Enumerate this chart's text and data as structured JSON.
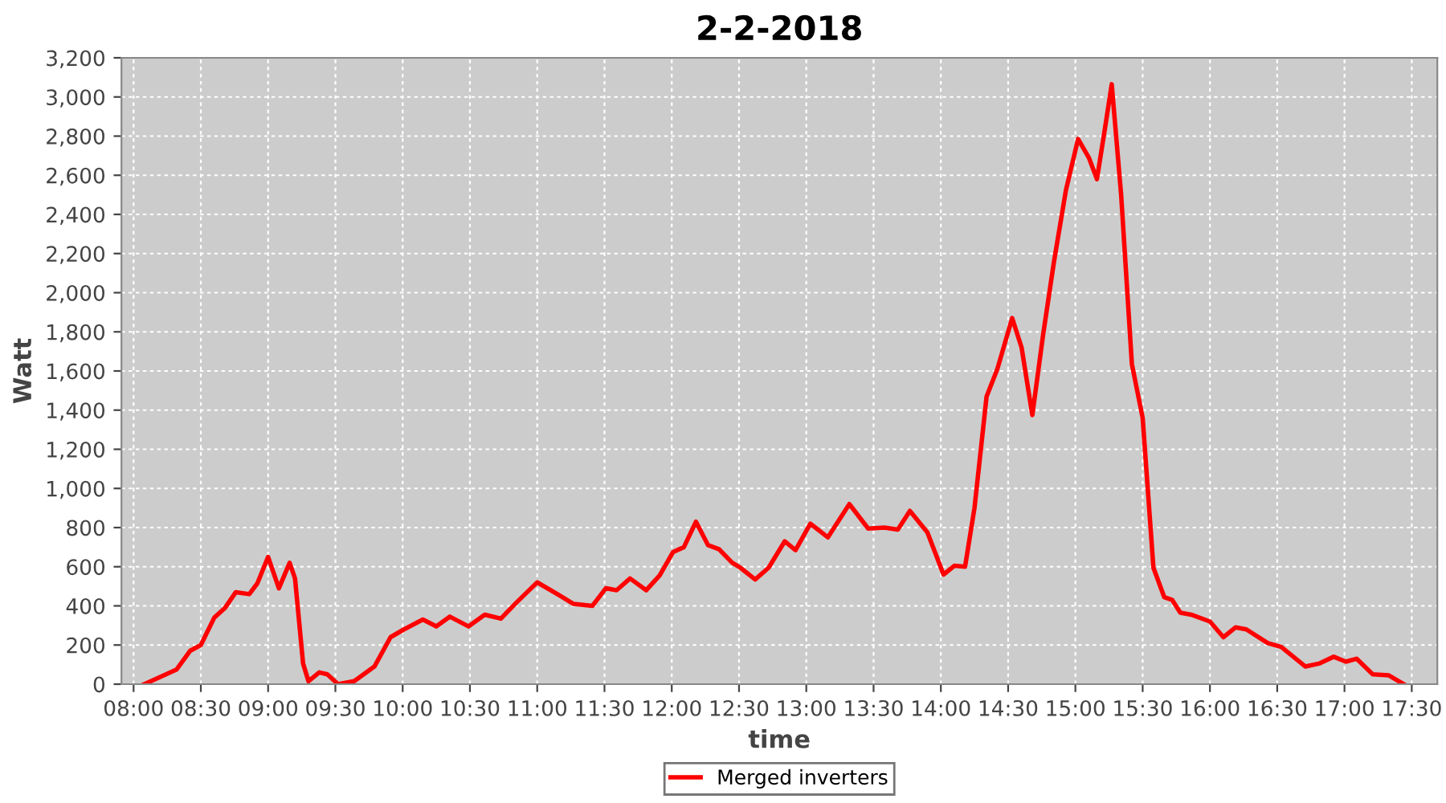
{
  "chart_data": {
    "type": "line",
    "title": "2-2-2018",
    "xlabel": "time",
    "ylabel": "Watt",
    "legend": "bottom",
    "grid": true,
    "line_style": "solid",
    "marker": "none",
    "xlim": [
      7.91,
      17.69
    ],
    "xticks": [
      {
        "value": 8,
        "label": "08:00"
      },
      {
        "value": 8.5,
        "label": "08:30"
      },
      {
        "value": 9,
        "label": "09:00"
      },
      {
        "value": 9.5,
        "label": "09:30"
      },
      {
        "value": 10,
        "label": "10:00"
      },
      {
        "value": 10.5,
        "label": "10:30"
      },
      {
        "value": 11,
        "label": "11:00"
      },
      {
        "value": 11.5,
        "label": "11:30"
      },
      {
        "value": 12,
        "label": "12:00"
      },
      {
        "value": 12.5,
        "label": "12:30"
      },
      {
        "value": 13,
        "label": "13:00"
      },
      {
        "value": 13.5,
        "label": "13:30"
      },
      {
        "value": 14,
        "label": "14:00"
      },
      {
        "value": 14.5,
        "label": "14:30"
      },
      {
        "value": 15,
        "label": "15:00"
      },
      {
        "value": 15.5,
        "label": "15:30"
      },
      {
        "value": 16,
        "label": "16:00"
      },
      {
        "value": 16.5,
        "label": "16:30"
      },
      {
        "value": 17,
        "label": "17:00"
      },
      {
        "value": 17.5,
        "label": "17:30"
      }
    ],
    "ylim": [
      0,
      3200
    ],
    "yticks": [
      0,
      200,
      400,
      600,
      800,
      {
        "value": 1000,
        "label": "1,000"
      },
      {
        "value": 1200,
        "label": "1,200"
      },
      {
        "value": 1400,
        "label": "1,400"
      },
      {
        "value": 1600,
        "label": "1,600"
      },
      {
        "value": 1800,
        "label": "1,800"
      },
      {
        "value": 2000,
        "label": "2,000"
      },
      {
        "value": 2200,
        "label": "2,200"
      },
      {
        "value": 2400,
        "label": "2,400"
      },
      {
        "value": 2600,
        "label": "2,600"
      },
      {
        "value": 2800,
        "label": "2,800"
      },
      {
        "value": 3000,
        "label": "3,000"
      },
      {
        "value": 3200,
        "label": "3,200"
      }
    ],
    "series": [
      {
        "name": "Merged inverters",
        "color": "#ff0000",
        "x": [
          8.08,
          8.32,
          8.42,
          8.5,
          8.6,
          8.68,
          8.76,
          8.86,
          8.92,
          9.0,
          9.08,
          9.16,
          9.2,
          9.26,
          9.3,
          9.38,
          9.44,
          9.52,
          9.64,
          9.79,
          9.91,
          10.01,
          10.15,
          10.25,
          10.35,
          10.49,
          10.61,
          10.73,
          10.85,
          11.0,
          11.15,
          11.27,
          11.41,
          11.51,
          11.59,
          11.69,
          11.81,
          11.91,
          12.01,
          12.09,
          12.18,
          12.27,
          12.35,
          12.45,
          12.51,
          12.62,
          12.72,
          12.84,
          12.92,
          13.03,
          13.16,
          13.32,
          13.46,
          13.58,
          13.68,
          13.77,
          13.9,
          14.02,
          14.1,
          14.18,
          14.25,
          14.34,
          14.42,
          14.53,
          14.6,
          14.68,
          14.76,
          14.84,
          14.93,
          15.02,
          15.1,
          15.16,
          15.22,
          15.27,
          15.34,
          15.42,
          15.5,
          15.58,
          15.66,
          15.72,
          15.78,
          15.86,
          16.0,
          16.1,
          16.19,
          16.27,
          16.43,
          16.53,
          16.71,
          16.81,
          16.92,
          17.01,
          17.09,
          17.21,
          17.33,
          17.44
        ],
        "values": [
          0,
          75,
          170,
          200,
          340,
          390,
          470,
          460,
          515,
          650,
          490,
          620,
          540,
          105,
          15,
          60,
          50,
          0,
          15,
          90,
          240,
          280,
          330,
          295,
          345,
          295,
          355,
          335,
          420,
          520,
          460,
          410,
          400,
          490,
          480,
          540,
          480,
          555,
          675,
          700,
          830,
          710,
          690,
          620,
          595,
          535,
          595,
          730,
          685,
          820,
          750,
          920,
          795,
          800,
          790,
          885,
          775,
          560,
          605,
          600,
          900,
          1470,
          1610,
          1870,
          1720,
          1375,
          1785,
          2155,
          2525,
          2785,
          2690,
          2580,
          2840,
          3065,
          2500,
          1635,
          1360,
          595,
          445,
          430,
          365,
          355,
          320,
          240,
          290,
          280,
          210,
          190,
          90,
          105,
          140,
          115,
          130,
          50,
          45,
          0
        ]
      }
    ]
  }
}
